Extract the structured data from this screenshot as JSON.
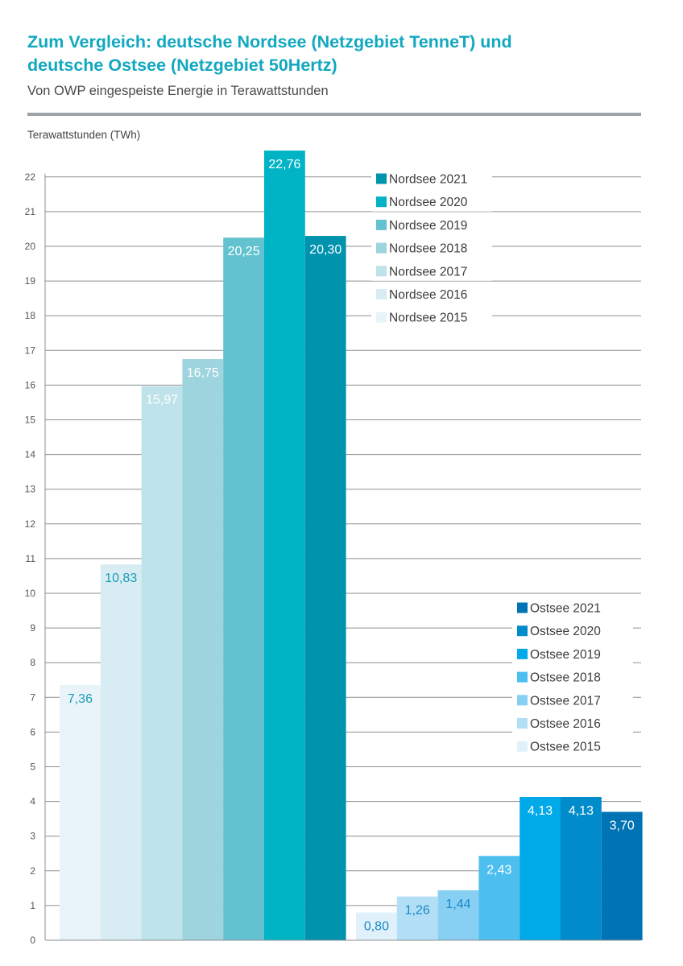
{
  "header": {
    "title_line1": "Zum Vergleich: deutsche Nordsee (Netzgebiet TenneT) und",
    "title_line2": "deutsche Ostsee (Netzgebiet 50Hertz)",
    "subtitle": "Von OWP eingespeiste Energie in Terawattstunden"
  },
  "colors": {
    "title": "#12a8c0",
    "nordsee": [
      "#e8f4f9",
      "#d7ecf3",
      "#bfe3ea",
      "#9dd4de",
      "#63c2cf",
      "#00b3c5",
      "#0093ae"
    ],
    "ostsee": [
      "#e0f1fb",
      "#b3dff6",
      "#88d0f3",
      "#4cbfee",
      "#00a9e8",
      "#008ccb",
      "#0073b4"
    ]
  },
  "chart_data": {
    "type": "bar",
    "ylabel": "Terawattstunden (TWh)",
    "ylim": [
      0,
      22
    ],
    "yticks": [
      0,
      1,
      2,
      3,
      4,
      5,
      6,
      7,
      8,
      9,
      10,
      11,
      12,
      13,
      14,
      15,
      16,
      17,
      18,
      19,
      20,
      21,
      22
    ],
    "grid": true,
    "groups": [
      {
        "legend_placement": "top-right",
        "series": [
          {
            "name": "Nordsee 2015",
            "value": 7.36,
            "label": "7,36"
          },
          {
            "name": "Nordsee 2016",
            "value": 10.83,
            "label": "10,83"
          },
          {
            "name": "Nordsee 2017",
            "value": 15.97,
            "label": "15,97"
          },
          {
            "name": "Nordsee 2018",
            "value": 16.75,
            "label": "16,75"
          },
          {
            "name": "Nordsee 2019",
            "value": 20.25,
            "label": "20,25"
          },
          {
            "name": "Nordsee 2020",
            "value": 22.76,
            "label": "22,76"
          },
          {
            "name": "Nordsee 2021",
            "value": 20.3,
            "label": "20,30"
          }
        ]
      },
      {
        "legend_placement": "middle-right",
        "series": [
          {
            "name": "Ostsee 2015",
            "value": 0.8,
            "label": "0,80"
          },
          {
            "name": "Ostsee 2016",
            "value": 1.26,
            "label": "1,26"
          },
          {
            "name": "Ostsee 2017",
            "value": 1.44,
            "label": "1,44"
          },
          {
            "name": "Ostsee 2018",
            "value": 2.43,
            "label": "2,43"
          },
          {
            "name": "Ostsee 2019",
            "value": 4.13,
            "label": "4,13"
          },
          {
            "name": "Ostsee 2020",
            "value": 4.13,
            "label": "4,13"
          },
          {
            "name": "Ostsee 2021",
            "value": 3.7,
            "label": "3,70"
          }
        ]
      }
    ]
  }
}
